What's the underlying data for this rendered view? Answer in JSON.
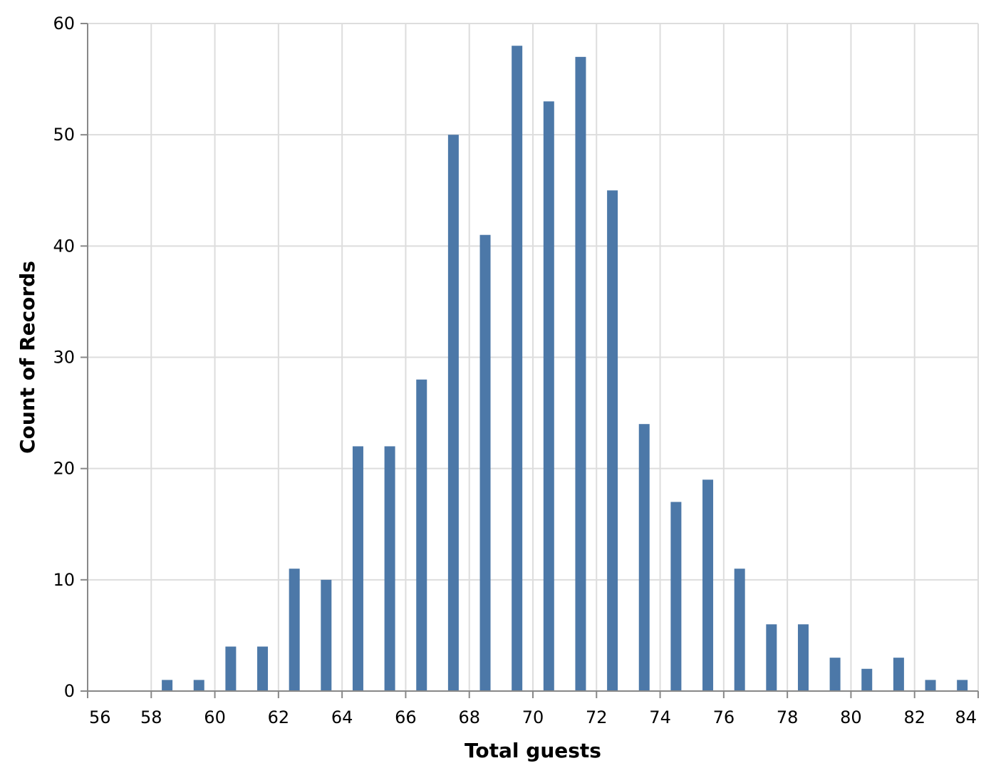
{
  "chart_data": {
    "type": "bar",
    "title": "",
    "xlabel": "Total guests",
    "ylabel": "Count of Records",
    "xlim": [
      56,
      84
    ],
    "ylim": [
      0,
      60
    ],
    "x_ticks": [
      56,
      58,
      60,
      62,
      64,
      66,
      68,
      70,
      72,
      74,
      76,
      78,
      80,
      82,
      84
    ],
    "y_ticks": [
      0,
      10,
      20,
      30,
      40,
      50,
      60
    ],
    "grid": true,
    "bar_color": "#4c78a8",
    "series": [
      {
        "name": "Count of Records",
        "x": [
          58,
          59,
          60,
          61,
          62,
          63,
          64,
          65,
          66,
          67,
          68,
          69,
          70,
          71,
          72,
          73,
          74,
          75,
          76,
          77,
          78,
          79,
          80,
          81,
          82,
          83
        ],
        "values": [
          1,
          1,
          4,
          4,
          11,
          10,
          22,
          22,
          28,
          50,
          41,
          58,
          53,
          57,
          45,
          24,
          17,
          19,
          11,
          6,
          6,
          3,
          2,
          3,
          1,
          1
        ]
      }
    ]
  }
}
